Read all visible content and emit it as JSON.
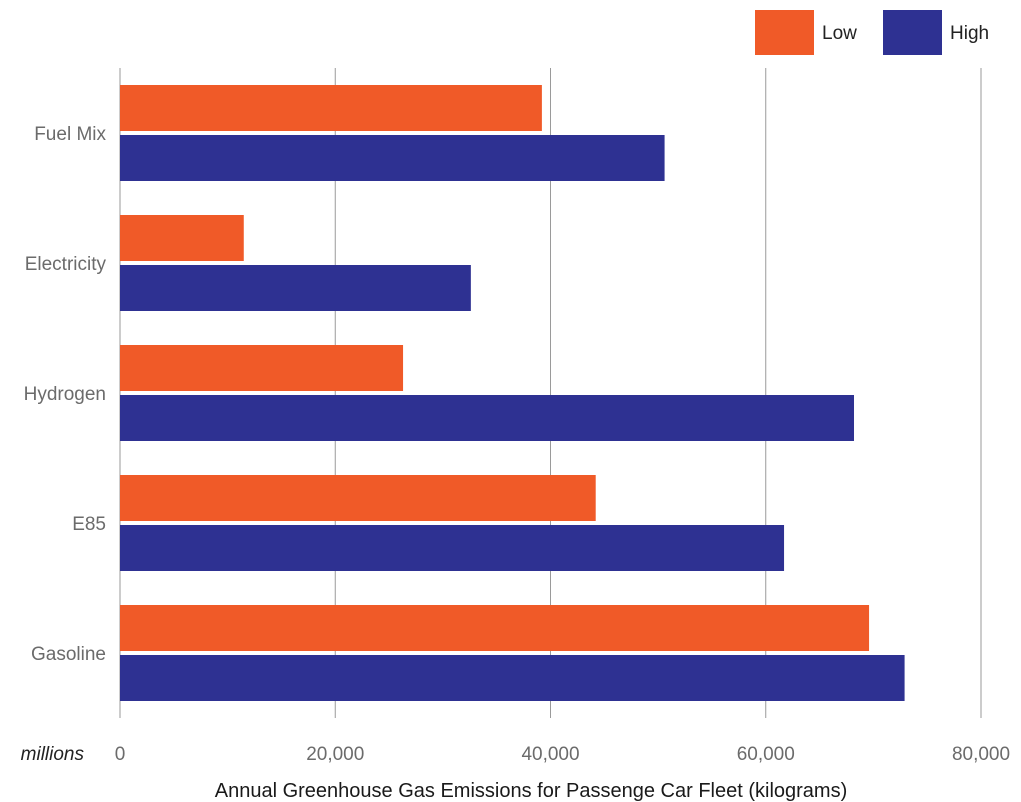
{
  "chart_data": {
    "type": "bar",
    "orientation": "horizontal",
    "categories": [
      "Fuel Mix",
      "Electricity",
      "Hydrogen",
      "E85",
      "Gasoline"
    ],
    "series": [
      {
        "name": "Low",
        "color": "#f05a28",
        "values": [
          39200,
          11500,
          26300,
          44200,
          69600
        ]
      },
      {
        "name": "High",
        "color": "#2e3192",
        "values": [
          50600,
          32600,
          68200,
          61700,
          72900
        ]
      }
    ],
    "xlabel": "Annual Greenhouse Gas Emissions for Passenge Car Fleet (kilograms)",
    "unit_label": "millions",
    "xlim": [
      0,
      80000
    ],
    "xticks": [
      "0",
      "20,000",
      "40,000",
      "60,000",
      "80,000"
    ],
    "grid": true,
    "legend_position": "top-right"
  }
}
